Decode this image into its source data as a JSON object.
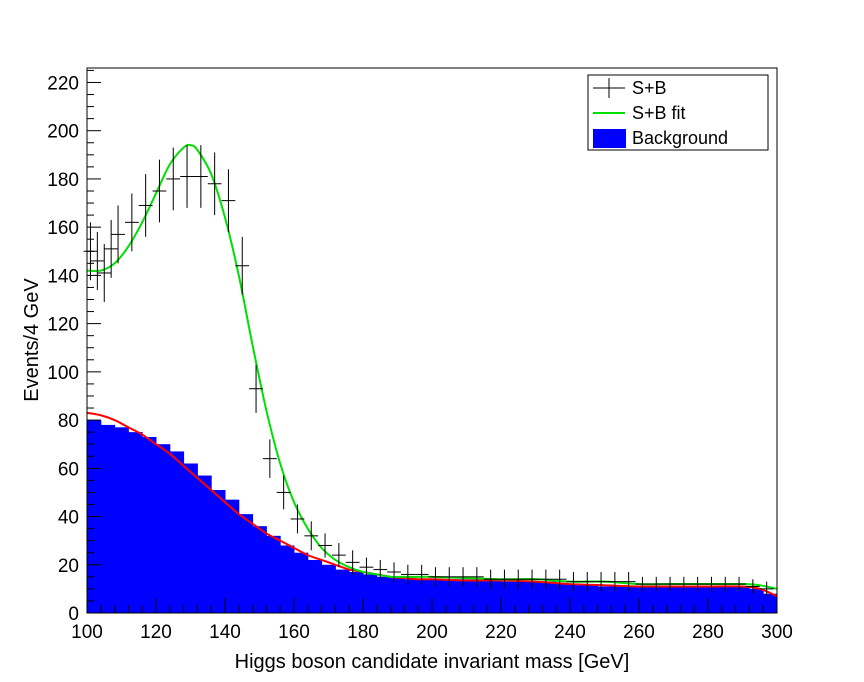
{
  "chart_data": {
    "type": "histogram",
    "xlabel": "Higgs boson candidate invariant mass [GeV]",
    "ylabel": "Events/4 GeV",
    "xlim": [
      100,
      300
    ],
    "ylim": [
      0,
      226
    ],
    "x_ticks": [
      "100",
      "120",
      "140",
      "160",
      "180",
      "200",
      "220",
      "240",
      "260",
      "280",
      "300"
    ],
    "y_ticks": [
      "0",
      "20",
      "40",
      "60",
      "80",
      "100",
      "120",
      "140",
      "160",
      "180",
      "200",
      "220"
    ],
    "bin_width": 4,
    "legend": {
      "position": "top-right",
      "entries": [
        {
          "label": "S+B",
          "style": "marker"
        },
        {
          "label": "S+B fit",
          "style": "line"
        },
        {
          "label": "Background",
          "style": "fill"
        }
      ]
    },
    "colors": {
      "background_fill": "#0000ff",
      "sb_fit": "#00e000",
      "bkg_fit": "#ff0000",
      "data": "#000000"
    },
    "background_hist": {
      "x_low": [
        100,
        104,
        108,
        112,
        116,
        120,
        124,
        128,
        132,
        136,
        140,
        144,
        148,
        152,
        156,
        160,
        164,
        168,
        172,
        176,
        180,
        184,
        188,
        192,
        196,
        200,
        204,
        208,
        212,
        216,
        220,
        224,
        228,
        232,
        236,
        240,
        244,
        248,
        252,
        256,
        260,
        264,
        268,
        272,
        276,
        280,
        284,
        288,
        292,
        296
      ],
      "values": [
        80,
        78,
        77,
        75,
        73,
        70,
        67,
        62,
        57,
        51,
        47,
        41,
        36,
        32,
        28,
        25,
        22,
        20,
        18,
        17,
        16,
        15,
        15,
        14,
        14,
        14,
        14,
        14,
        14,
        14,
        13,
        13,
        13,
        13,
        12,
        12,
        12,
        11,
        11,
        11,
        11,
        11,
        11,
        11,
        11,
        11,
        11,
        11,
        10,
        8
      ]
    },
    "sb_data": {
      "x": [
        101,
        103,
        105,
        107,
        109,
        113,
        117,
        121,
        125,
        129,
        133,
        137,
        141,
        145,
        149,
        153,
        157,
        161,
        165,
        169,
        173,
        177,
        181,
        185,
        189,
        193,
        197,
        201,
        205,
        209,
        213,
        217,
        221,
        225,
        229,
        233,
        237,
        241,
        245,
        249,
        253,
        257,
        261,
        265,
        269,
        273,
        277,
        281,
        285,
        289,
        293,
        297
      ],
      "y": [
        150,
        146,
        141,
        151,
        157,
        162,
        169,
        175,
        180,
        181,
        181,
        178,
        171,
        144,
        93,
        64,
        50,
        39,
        32,
        28,
        24,
        21,
        19,
        18,
        17,
        16,
        16,
        15,
        15,
        15,
        15,
        14,
        14,
        14,
        14,
        14,
        14,
        13,
        13,
        13,
        13,
        13,
        12,
        12,
        12,
        12,
        12,
        12,
        12,
        12,
        11,
        10
      ],
      "yerr": [
        12,
        12,
        12,
        12,
        12,
        12,
        13,
        13,
        13,
        13,
        13,
        13,
        13,
        12,
        10,
        8,
        7,
        6,
        6,
        5,
        5,
        5,
        4,
        4,
        4,
        4,
        4,
        4,
        4,
        4,
        4,
        4,
        4,
        4,
        4,
        4,
        4,
        4,
        4,
        4,
        4,
        4,
        3,
        3,
        3,
        3,
        3,
        3,
        3,
        3,
        3,
        3
      ]
    },
    "sb_fit": {
      "x": [
        100,
        104,
        108,
        112,
        116,
        120,
        124,
        128,
        130,
        132,
        136,
        140,
        144,
        148,
        152,
        156,
        160,
        164,
        168,
        172,
        176,
        180,
        184,
        188,
        192,
        196,
        200,
        210,
        220,
        230,
        240,
        250,
        260,
        270,
        280,
        290,
        295,
        300
      ],
      "y": [
        142,
        142,
        145,
        152,
        162,
        174,
        186,
        193,
        194,
        192,
        182,
        164,
        140,
        111,
        84,
        62,
        46,
        35,
        27,
        22,
        19,
        17,
        16,
        15,
        15,
        15,
        15,
        14.5,
        14,
        14,
        13,
        13,
        12,
        12,
        12,
        12,
        11.5,
        10
      ]
    },
    "bkg_fit": {
      "x": [
        100,
        104,
        108,
        112,
        116,
        120,
        124,
        128,
        132,
        136,
        140,
        144,
        148,
        152,
        156,
        160,
        164,
        168,
        172,
        176,
        180,
        184,
        188,
        192,
        196,
        200,
        210,
        220,
        230,
        240,
        250,
        260,
        270,
        280,
        290,
        295,
        300
      ],
      "y": [
        83,
        82,
        80,
        77,
        74,
        70,
        66,
        61,
        56,
        51,
        46,
        41,
        37,
        33,
        30,
        27,
        24,
        22,
        20,
        18,
        17,
        16,
        15,
        14.5,
        14,
        14,
        13.5,
        13.5,
        13,
        12,
        11.5,
        11,
        11,
        11,
        11,
        10,
        7
      ]
    }
  }
}
